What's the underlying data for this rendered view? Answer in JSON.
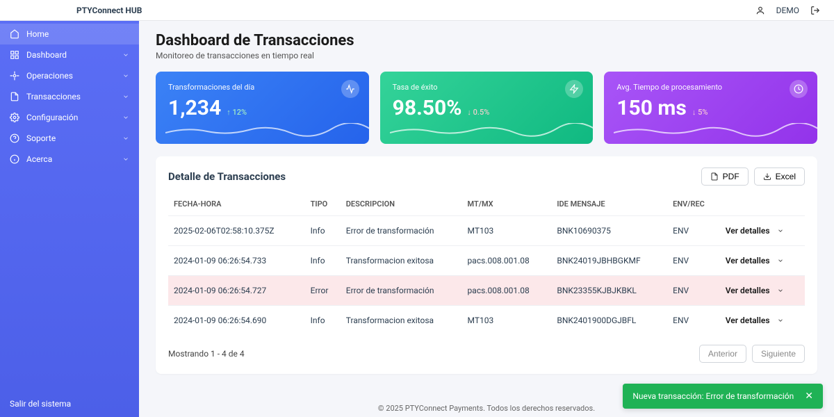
{
  "brand": "PTYConnect HUB",
  "user": {
    "name": "DEMO"
  },
  "sidebar": {
    "items": [
      {
        "label": "Home",
        "active": true,
        "expandable": false
      },
      {
        "label": "Dashboard",
        "active": false,
        "expandable": true
      },
      {
        "label": "Operaciones",
        "active": false,
        "expandable": true
      },
      {
        "label": "Transacciones",
        "active": false,
        "expandable": true
      },
      {
        "label": "Configuración",
        "active": false,
        "expandable": true
      },
      {
        "label": "Soporte",
        "active": false,
        "expandable": true
      },
      {
        "label": "Acerca",
        "active": false,
        "expandable": true
      }
    ],
    "footer": "Salir del sistema"
  },
  "page": {
    "title": "Dashboard de Transacciones",
    "subtitle": "Monitoreo de transacciones en tiempo real"
  },
  "cards": [
    {
      "label": "Transformaciones del día",
      "value": "1,234",
      "delta": "↑ 12%",
      "delta_color": "#a8f5c4",
      "bg": "linear-gradient(135deg,#3b82f6 0%,#2563eb 100%)"
    },
    {
      "label": "Tasa de éxito",
      "value": "98.50%",
      "delta": "↓ 0.5%",
      "delta_color": "#ffd2d2",
      "bg": "linear-gradient(135deg,#34d399 0%,#10b981 100%)"
    },
    {
      "label": "Avg. Tiempo de procesamiento",
      "value": "150 ms",
      "delta": "↓ 5%",
      "delta_color": "#ffd2d2",
      "bg": "linear-gradient(135deg,#a855f7 0%,#9333ea 100%)"
    }
  ],
  "table": {
    "title": "Detalle de Transacciones",
    "buttons": {
      "pdf": "PDF",
      "excel": "Excel"
    },
    "columns": [
      "FECHA-HORA",
      "TIPO",
      "DESCRIPCION",
      "MT/MX",
      "IDE MENSAJE",
      "ENV/REC",
      ""
    ],
    "details_label": "Ver detalles",
    "rows": [
      {
        "datetime": "2025-02-06T02:58:10.375Z",
        "tipo": "Info",
        "desc": "Error de transformación",
        "mtmx": "MT103",
        "ide": "BNK10690375",
        "envrec": "ENV",
        "error": false
      },
      {
        "datetime": "2024-01-09 06:26:54.733",
        "tipo": "Info",
        "desc": "Transformacion exitosa",
        "mtmx": "pacs.008.001.08",
        "ide": "BNK24019JBHBGKMF",
        "envrec": "ENV",
        "error": false
      },
      {
        "datetime": "2024-01-09 06:26:54.727",
        "tipo": "Error",
        "desc": "Error de transformación",
        "mtmx": "pacs.008.001.08",
        "ide": "BNK23355KJBJKBKL",
        "envrec": "ENV",
        "error": true
      },
      {
        "datetime": "2024-01-09 06:26:54.690",
        "tipo": "Info",
        "desc": "Transformacion exitosa",
        "mtmx": "MT103",
        "ide": "BNK2401900DGJBFL",
        "envrec": "ENV",
        "error": false
      }
    ],
    "footer_text": "Mostrando 1 - 4 de 4",
    "prev": "Anterior",
    "next": "Siguiente"
  },
  "footer": "© 2025 PTYConnect Payments. Todos los derechos reservados.",
  "toast": "Nueva transacción: Error de transformación"
}
